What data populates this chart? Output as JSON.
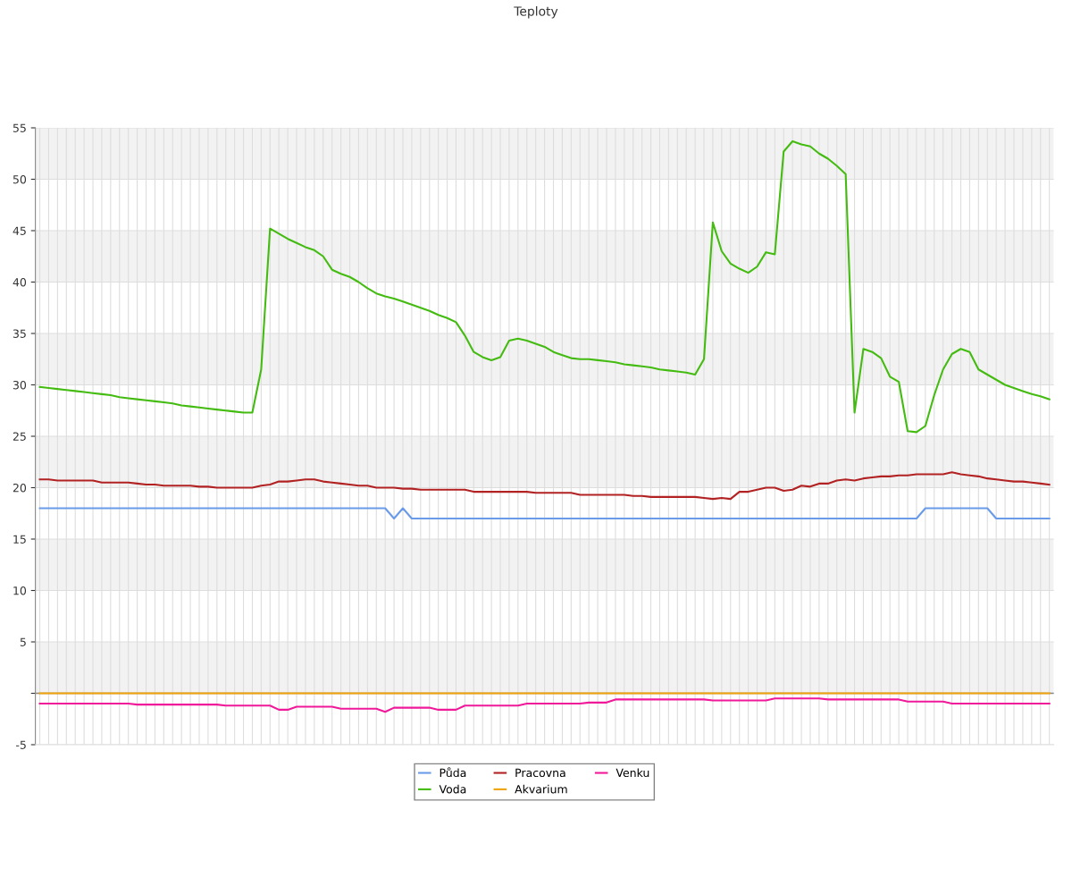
{
  "chart_data": {
    "type": "line",
    "title": "Teploty",
    "categories": [
      null,
      null,
      null,
      null,
      null,
      null,
      null,
      null,
      null,
      null,
      null,
      null,
      null,
      null,
      null,
      null,
      null,
      null,
      null,
      null,
      null,
      null,
      null,
      null,
      null,
      null,
      null,
      null,
      null,
      null,
      null,
      null,
      null,
      null,
      null,
      null,
      null,
      null,
      null,
      null,
      null,
      null,
      null,
      null,
      null,
      null,
      null,
      null,
      null,
      null,
      null,
      null,
      null,
      null,
      null,
      null,
      null,
      null,
      null,
      null,
      null,
      null,
      null,
      null,
      null,
      null,
      null,
      null,
      null,
      null,
      null,
      null,
      null,
      null,
      null,
      null,
      null,
      null,
      null,
      null,
      null,
      null,
      null,
      null,
      null,
      null,
      null,
      null,
      null,
      null,
      null,
      null,
      null,
      null,
      null,
      null,
      null,
      null,
      null,
      null,
      null,
      null,
      null,
      null,
      null,
      null,
      null,
      null,
      null,
      null,
      null,
      null,
      null,
      null,
      null
    ],
    "series": [
      {
        "name": "Půda",
        "color": "#6a9be8",
        "values": [
          18,
          18,
          18,
          18,
          18,
          18,
          18,
          18,
          18,
          18,
          18,
          18,
          18,
          18,
          18,
          18,
          18,
          18,
          18,
          18,
          18,
          18,
          18,
          18,
          18,
          18,
          18,
          18,
          18,
          18,
          18,
          18,
          18,
          18,
          18,
          18,
          18,
          18,
          18,
          18,
          17,
          18,
          17,
          17,
          17,
          17,
          17,
          17,
          17,
          17,
          17,
          17,
          17,
          17,
          17,
          17,
          17,
          17,
          17,
          17,
          17,
          17,
          17,
          17,
          17,
          17,
          17,
          17,
          17,
          17,
          17,
          17,
          17,
          17,
          17,
          17,
          17,
          17,
          17,
          17,
          17,
          17,
          17,
          17,
          17,
          17,
          17,
          17,
          17,
          17,
          17,
          17,
          17,
          17,
          17,
          17,
          17,
          17,
          17,
          17,
          18,
          18,
          18,
          18,
          18,
          18,
          18,
          18,
          17,
          17,
          17,
          17,
          17,
          17,
          17
        ]
      },
      {
        "name": "Voda",
        "color": "#44bb11",
        "values": [
          29.8,
          29.7,
          29.6,
          29.5,
          29.4,
          29.3,
          29.2,
          29.1,
          29.0,
          28.8,
          28.7,
          28.6,
          28.5,
          28.4,
          28.3,
          28.2,
          28.0,
          27.9,
          27.8,
          27.7,
          27.6,
          27.5,
          27.4,
          27.3,
          27.3,
          31.5,
          45.2,
          44.7,
          44.2,
          43.8,
          43.4,
          43.1,
          42.5,
          41.2,
          40.8,
          40.5,
          40.0,
          39.4,
          38.9,
          38.6,
          38.4,
          38.1,
          37.8,
          37.5,
          37.2,
          36.8,
          36.5,
          36.1,
          34.8,
          33.2,
          32.7,
          32.4,
          32.7,
          34.3,
          34.5,
          34.3,
          34.0,
          33.7,
          33.2,
          32.9,
          32.6,
          32.5,
          32.5,
          32.4,
          32.3,
          32.2,
          32.0,
          31.9,
          31.8,
          31.7,
          31.5,
          31.4,
          31.3,
          31.2,
          31.0,
          32.5,
          45.8,
          43.0,
          41.8,
          41.3,
          40.9,
          41.5,
          42.9,
          42.7,
          52.7,
          53.7,
          53.4,
          53.2,
          52.5,
          52.0,
          51.3,
          50.5,
          27.3,
          33.5,
          33.2,
          32.6,
          30.8,
          30.3,
          25.5,
          25.4,
          26.0,
          29.0,
          31.5,
          33.0,
          33.5,
          33.2,
          31.5,
          31.0,
          30.5,
          30.0,
          29.7,
          29.4,
          29.1,
          28.9,
          28.6
        ]
      },
      {
        "name": "Pracovna",
        "color": "#b22222",
        "values": [
          20.8,
          20.8,
          20.7,
          20.7,
          20.7,
          20.7,
          20.7,
          20.5,
          20.5,
          20.5,
          20.5,
          20.4,
          20.3,
          20.3,
          20.2,
          20.2,
          20.2,
          20.2,
          20.1,
          20.1,
          20.0,
          20.0,
          20.0,
          20.0,
          20.0,
          20.2,
          20.3,
          20.6,
          20.6,
          20.7,
          20.8,
          20.8,
          20.6,
          20.5,
          20.4,
          20.3,
          20.2,
          20.2,
          20.0,
          20.0,
          20.0,
          19.9,
          19.9,
          19.8,
          19.8,
          19.8,
          19.8,
          19.8,
          19.8,
          19.6,
          19.6,
          19.6,
          19.6,
          19.6,
          19.6,
          19.6,
          19.5,
          19.5,
          19.5,
          19.5,
          19.5,
          19.3,
          19.3,
          19.3,
          19.3,
          19.3,
          19.3,
          19.2,
          19.2,
          19.1,
          19.1,
          19.1,
          19.1,
          19.1,
          19.1,
          19.0,
          18.9,
          19.0,
          18.9,
          19.6,
          19.6,
          19.8,
          20.0,
          20.0,
          19.7,
          19.8,
          20.2,
          20.1,
          20.4,
          20.4,
          20.7,
          20.8,
          20.7,
          20.9,
          21.0,
          21.1,
          21.1,
          21.2,
          21.2,
          21.3,
          21.3,
          21.3,
          21.3,
          21.5,
          21.3,
          21.2,
          21.1,
          20.9,
          20.8,
          20.7,
          20.6,
          20.6,
          20.5,
          20.4,
          20.3
        ]
      },
      {
        "name": "Akvarium",
        "color": "#f0a30a",
        "values": [
          0,
          0,
          0,
          0,
          0,
          0,
          0,
          0,
          0,
          0,
          0,
          0,
          0,
          0,
          0,
          0,
          0,
          0,
          0,
          0,
          0,
          0,
          0,
          0,
          0,
          0,
          0,
          0,
          0,
          0,
          0,
          0,
          0,
          0,
          0,
          0,
          0,
          0,
          0,
          0,
          0,
          0,
          0,
          0,
          0,
          0,
          0,
          0,
          0,
          0,
          0,
          0,
          0,
          0,
          0,
          0,
          0,
          0,
          0,
          0,
          0,
          0,
          0,
          0,
          0,
          0,
          0,
          0,
          0,
          0,
          0,
          0,
          0,
          0,
          0,
          0,
          0,
          0,
          0,
          0,
          0,
          0,
          0,
          0,
          0,
          0,
          0,
          0,
          0,
          0,
          0,
          0,
          0,
          0,
          0,
          0,
          0,
          0,
          0,
          0,
          0,
          0,
          0,
          0,
          0,
          0,
          0,
          0,
          0,
          0,
          0,
          0,
          0,
          0,
          0
        ]
      },
      {
        "name": "Venku",
        "color": "#f0199a",
        "values": [
          -1.0,
          -1.0,
          -1.0,
          -1.0,
          -1.0,
          -1.0,
          -1.0,
          -1.0,
          -1.0,
          -1.0,
          -1.0,
          -1.1,
          -1.1,
          -1.1,
          -1.1,
          -1.1,
          -1.1,
          -1.1,
          -1.1,
          -1.1,
          -1.1,
          -1.2,
          -1.2,
          -1.2,
          -1.2,
          -1.2,
          -1.2,
          -1.6,
          -1.6,
          -1.3,
          -1.3,
          -1.3,
          -1.3,
          -1.3,
          -1.5,
          -1.5,
          -1.5,
          -1.5,
          -1.5,
          -1.8,
          -1.4,
          -1.4,
          -1.4,
          -1.4,
          -1.4,
          -1.6,
          -1.6,
          -1.6,
          -1.2,
          -1.2,
          -1.2,
          -1.2,
          -1.2,
          -1.2,
          -1.2,
          -1.0,
          -1.0,
          -1.0,
          -1.0,
          -1.0,
          -1.0,
          -1.0,
          -0.9,
          -0.9,
          -0.9,
          -0.6,
          -0.6,
          -0.6,
          -0.6,
          -0.6,
          -0.6,
          -0.6,
          -0.6,
          -0.6,
          -0.6,
          -0.6,
          -0.7,
          -0.7,
          -0.7,
          -0.7,
          -0.7,
          -0.7,
          -0.7,
          -0.5,
          -0.5,
          -0.5,
          -0.5,
          -0.5,
          -0.5,
          -0.6,
          -0.6,
          -0.6,
          -0.6,
          -0.6,
          -0.6,
          -0.6,
          -0.6,
          -0.6,
          -0.8,
          -0.8,
          -0.8,
          -0.8,
          -0.8,
          -1.0,
          -1.0,
          -1.0,
          -1.0,
          -1.0,
          -1.0,
          -1.0,
          -1.0,
          -1.0,
          -1.0,
          -1.0,
          -1.0
        ]
      }
    ],
    "ylim": [
      -5,
      55
    ],
    "yticks": [
      -5,
      {
        "value": 0,
        "label": null
      },
      5,
      10,
      15,
      20,
      25,
      30,
      35,
      40,
      45,
      50,
      55
    ],
    "bands": [
      {
        "axis": "y",
        "from": 0,
        "to": 5,
        "color": "#f2f2f2"
      },
      {
        "axis": "y",
        "from": 10,
        "to": 15,
        "color": "#f2f2f2"
      },
      {
        "axis": "y",
        "from": 20,
        "to": 25,
        "color": "#f2f2f2"
      },
      {
        "axis": "y",
        "from": 30,
        "to": 35,
        "color": "#f2f2f2"
      },
      {
        "axis": "y",
        "from": 40,
        "to": 45,
        "color": "#f2f2f2"
      },
      {
        "axis": "y",
        "from": 50,
        "to": 55,
        "color": "#f2f2f2"
      }
    ],
    "grid": true,
    "legend": "bottom",
    "tick_labels": "y",
    "line_style": "solid",
    "marker": "none"
  }
}
